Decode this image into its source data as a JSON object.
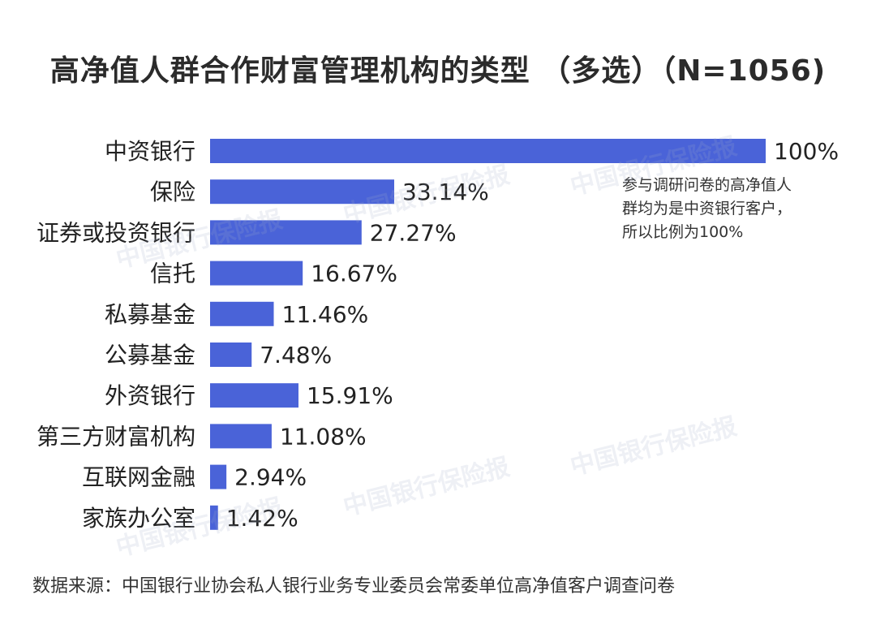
{
  "title": "高净值人群合作财富管理机构的类型 （多选）（N=1056)",
  "annotation": [
    "参与调研问卷的高净值人",
    "群均为是中资银行客户，",
    "所以比例为100%"
  ],
  "source": "数据来源：中国银行业协会私人银行业务专业委员会常委单位高净值客户调查问卷",
  "watermark": "中国银行保险报",
  "colors": {
    "bar": "#4a63d8",
    "text": "#222222"
  },
  "chart_data": {
    "type": "bar",
    "orientation": "horizontal",
    "categories": [
      "中资银行",
      "保险",
      "证券或投资银行",
      "信托",
      "私募基金",
      "公募基金",
      "外资银行",
      "第三方财富机构",
      "互联网金融",
      "家族办公室"
    ],
    "values": [
      100,
      33.14,
      27.27,
      16.67,
      11.46,
      7.48,
      15.91,
      11.08,
      2.94,
      1.42
    ],
    "value_labels": [
      "100%",
      "33.14%",
      "27.27%",
      "16.67%",
      "11.46%",
      "7.48%",
      "15.91%",
      "11.08%",
      "2.94%",
      "1.42%"
    ],
    "xlim": [
      0,
      100
    ],
    "grid": false,
    "legend": "none"
  }
}
